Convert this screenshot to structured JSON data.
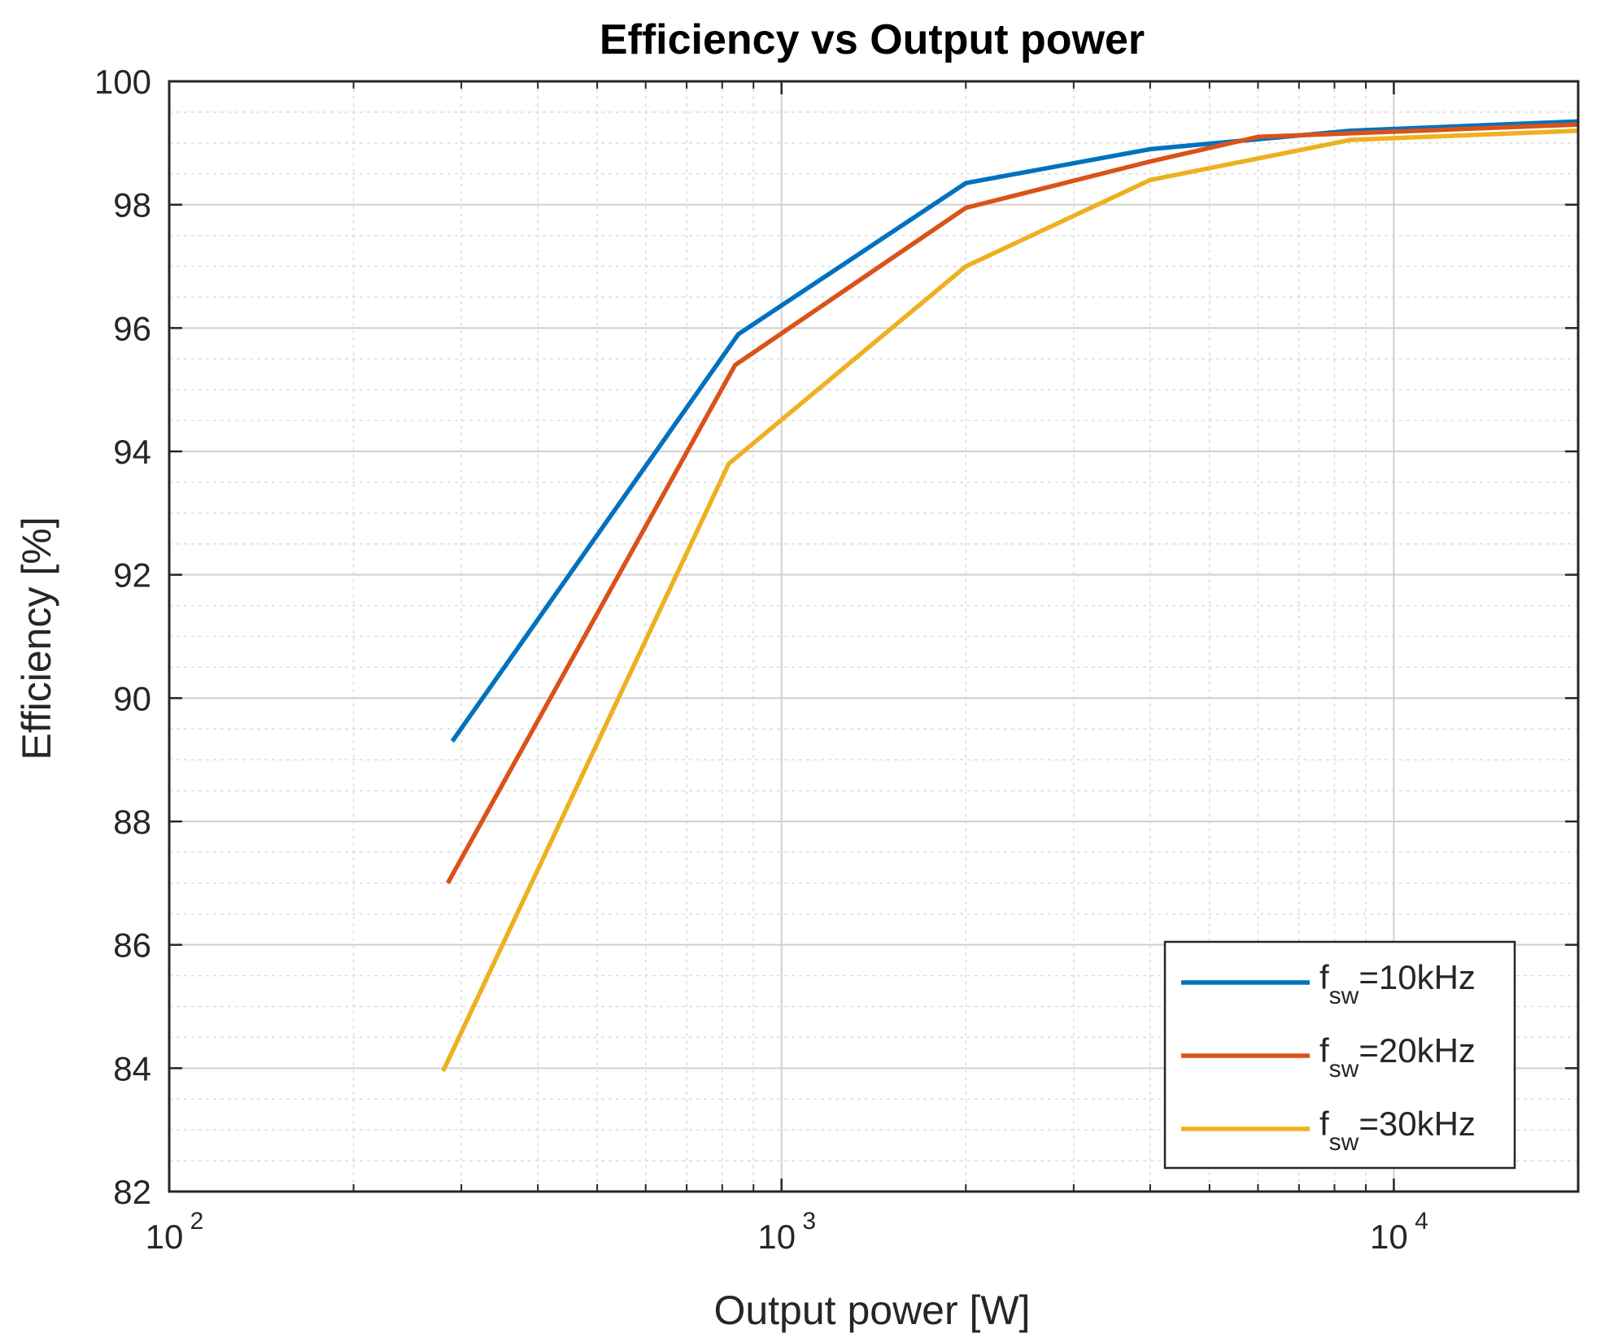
{
  "chart_data": {
    "type": "line",
    "title": "Efficiency vs Output power",
    "xlabel": "Output power [W]",
    "ylabel": "Efficiency [%]",
    "xscale": "log",
    "xlim": [
      100,
      20000
    ],
    "ylim": [
      82,
      100
    ],
    "grid": true,
    "minor_grid": true,
    "legend_position": "bottom-right",
    "x_ticks": [
      {
        "base": "10",
        "exp": "2"
      },
      {
        "base": "10",
        "exp": "3"
      },
      {
        "base": "10",
        "exp": "4"
      }
    ],
    "y_ticks": [
      "82",
      "84",
      "86",
      "88",
      "90",
      "92",
      "94",
      "96",
      "98",
      "100"
    ],
    "series": [
      {
        "name": "fsw=10kHz",
        "label_main": "f",
        "label_sub": "sw",
        "label_rest": "=10kHz",
        "color": "#0072BD",
        "x": [
          290,
          850,
          2000,
          4000,
          8500,
          20000
        ],
        "y": [
          89.3,
          95.9,
          98.35,
          98.9,
          99.2,
          99.35
        ]
      },
      {
        "name": "fsw=20kHz",
        "label_main": "f",
        "label_sub": "sw",
        "label_rest": "=20kHz",
        "color": "#D95319",
        "x": [
          285,
          840,
          2000,
          4000,
          6000,
          20000
        ],
        "y": [
          87.0,
          95.4,
          97.95,
          98.7,
          99.1,
          99.3
        ]
      },
      {
        "name": "fsw=30kHz",
        "label_main": "f",
        "label_sub": "sw",
        "label_rest": "=30kHz",
        "color": "#EDB120",
        "x": [
          280,
          820,
          2000,
          4000,
          8500,
          20000
        ],
        "y": [
          83.95,
          93.8,
          97.0,
          98.4,
          99.05,
          99.2
        ]
      }
    ]
  }
}
